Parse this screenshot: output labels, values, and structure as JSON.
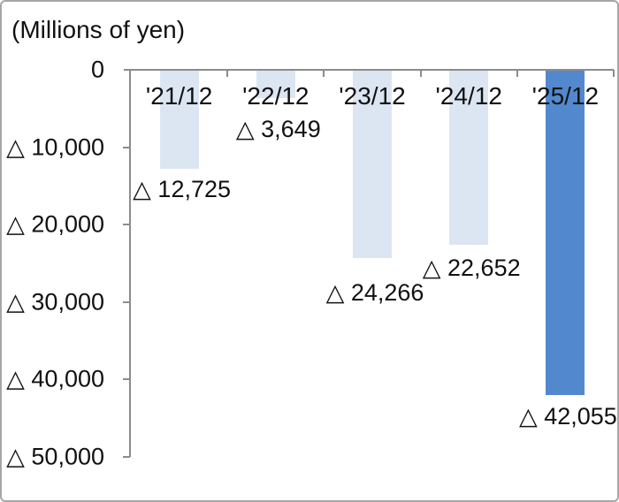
{
  "chart_data": {
    "type": "bar",
    "title": "(Millions of yen)",
    "categories": [
      "'21/12",
      "'22/12",
      "'23/12",
      "'24/12",
      "'25/12"
    ],
    "values": [
      -12725,
      -3649,
      -24266,
      -22652,
      -42055
    ],
    "value_labels": [
      "△ 12,725",
      "△ 3,649",
      "△ 24,266",
      "△ 22,652",
      "△ 42,055"
    ],
    "y_tick_labels": [
      "0",
      "△ 10,000",
      "△ 20,000",
      "△ 30,000",
      "△ 40,000",
      "△ 50,000"
    ],
    "y_tick_values": [
      0,
      -10000,
      -20000,
      -30000,
      -40000,
      -50000
    ],
    "ylim": [
      0,
      -50000
    ],
    "xlabel": "",
    "ylabel": "(Millions of yen)",
    "grid": false,
    "legend": "none",
    "negative_notation": "triangle",
    "bar_color_default": "#dce6f2",
    "bar_color_highlight": "#5289ce",
    "highlight_index": 4,
    "axis_color": "#8c8c8c"
  }
}
